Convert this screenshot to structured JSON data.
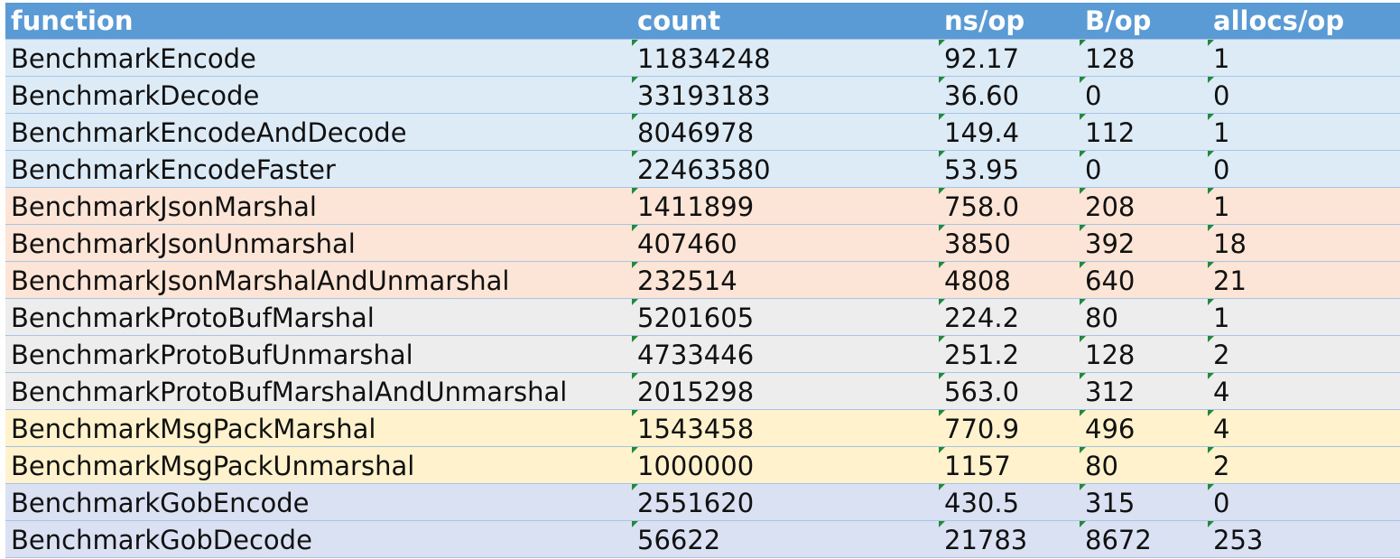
{
  "table": {
    "headers": [
      "function",
      "count",
      "ns/op",
      "B/op",
      "allocs/op"
    ],
    "rows": [
      {
        "function": "BenchmarkEncode",
        "count": "11834248",
        "ns_op": "92.17",
        "b_op": "128",
        "allocs_op": "1"
      },
      {
        "function": "BenchmarkDecode",
        "count": "33193183",
        "ns_op": "36.60",
        "b_op": "0",
        "allocs_op": "0"
      },
      {
        "function": "BenchmarkEncodeAndDecode",
        "count": "8046978",
        "ns_op": "149.4",
        "b_op": "112",
        "allocs_op": "1"
      },
      {
        "function": "BenchmarkEncodeFaster",
        "count": "22463580",
        "ns_op": "53.95",
        "b_op": "0",
        "allocs_op": "0"
      },
      {
        "function": "BenchmarkJsonMarshal",
        "count": "1411899",
        "ns_op": "758.0",
        "b_op": "208",
        "allocs_op": "1"
      },
      {
        "function": "BenchmarkJsonUnmarshal",
        "count": "407460",
        "ns_op": "3850",
        "b_op": "392",
        "allocs_op": "18"
      },
      {
        "function": "BenchmarkJsonMarshalAndUnmarshal",
        "count": "232514",
        "ns_op": "4808",
        "b_op": "640",
        "allocs_op": "21"
      },
      {
        "function": "BenchmarkProtoBufMarshal",
        "count": "5201605",
        "ns_op": "224.2",
        "b_op": "80",
        "allocs_op": "1"
      },
      {
        "function": "BenchmarkProtoBufUnmarshal",
        "count": "4733446",
        "ns_op": "251.2",
        "b_op": "128",
        "allocs_op": "2"
      },
      {
        "function": "BenchmarkProtoBufMarshalAndUnmarshal",
        "count": "2015298",
        "ns_op": "563.0",
        "b_op": "312",
        "allocs_op": "4"
      },
      {
        "function": "BenchmarkMsgPackMarshal",
        "count": "1543458",
        "ns_op": "770.9",
        "b_op": "496",
        "allocs_op": "4"
      },
      {
        "function": "BenchmarkMsgPackUnmarshal",
        "count": "1000000",
        "ns_op": "1157",
        "b_op": "80",
        "allocs_op": "2"
      },
      {
        "function": "BenchmarkGobEncode",
        "count": "2551620",
        "ns_op": "430.5",
        "b_op": "315",
        "allocs_op": "0"
      },
      {
        "function": "BenchmarkGobDecode",
        "count": "56622",
        "ns_op": "21783",
        "b_op": "8672",
        "allocs_op": "253"
      }
    ]
  },
  "colors": {
    "header_bg": "#5b9bd5",
    "group_bgs": [
      "#ddebf7",
      "#ddebf7",
      "#ddebf7",
      "#ddebf7",
      "#fce4d6",
      "#fce4d6",
      "#fce4d6",
      "#ededed",
      "#ededed",
      "#ededed",
      "#fff2cc",
      "#fff2cc",
      "#d9e1f2",
      "#d9e1f2"
    ]
  }
}
